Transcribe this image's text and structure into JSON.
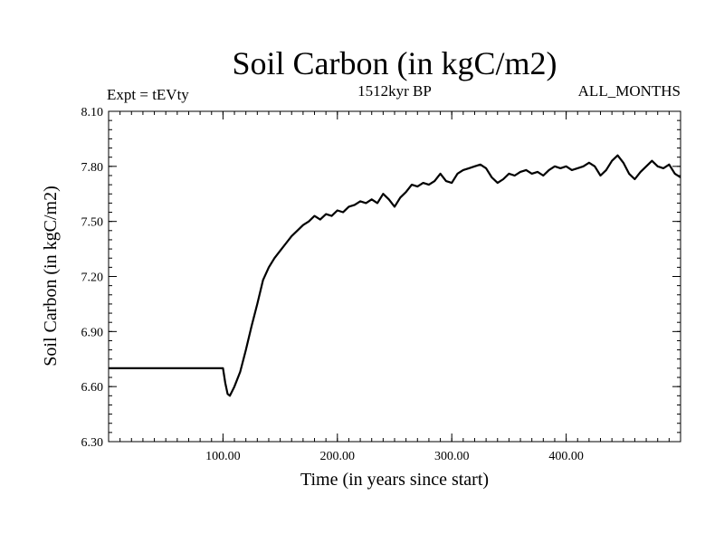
{
  "chart_data": {
    "type": "line",
    "title": "Soil Carbon (in kgC/m2)",
    "left_label": "Expt = tEVty",
    "center_label": "1512kyr BP",
    "right_label": "ALL_MONTHS",
    "xlabel": "Time (in years since start)",
    "ylabel": "Soil Carbon (in kgC/m2)",
    "xlim": [
      0,
      500
    ],
    "ylim": [
      6.3,
      8.1
    ],
    "x_ticks": [
      {
        "value": 100,
        "label": "100.00"
      },
      {
        "value": 200,
        "label": "200.00"
      },
      {
        "value": 300,
        "label": "300.00"
      },
      {
        "value": 400,
        "label": "400.00"
      }
    ],
    "y_ticks": [
      {
        "value": 6.3,
        "label": "6.30"
      },
      {
        "value": 6.6,
        "label": "6.60"
      },
      {
        "value": 6.9,
        "label": "6.90"
      },
      {
        "value": 7.2,
        "label": "7.20"
      },
      {
        "value": 7.5,
        "label": "7.50"
      },
      {
        "value": 7.8,
        "label": "7.80"
      },
      {
        "value": 8.1,
        "label": "8.10"
      }
    ],
    "series": [
      {
        "name": "Soil Carbon",
        "color": "#000000",
        "x": [
          0,
          100,
          102,
          104,
          106,
          110,
          115,
          120,
          125,
          130,
          135,
          140,
          145,
          150,
          155,
          160,
          165,
          170,
          175,
          180,
          185,
          190,
          195,
          200,
          205,
          210,
          215,
          220,
          225,
          230,
          235,
          240,
          245,
          250,
          255,
          260,
          265,
          270,
          275,
          280,
          285,
          290,
          295,
          300,
          305,
          310,
          315,
          320,
          325,
          330,
          335,
          340,
          345,
          350,
          355,
          360,
          365,
          370,
          375,
          380,
          385,
          390,
          395,
          400,
          405,
          410,
          415,
          420,
          425,
          430,
          435,
          440,
          445,
          450,
          455,
          460,
          465,
          470,
          475,
          480,
          485,
          490,
          495,
          500
        ],
        "y": [
          6.7,
          6.7,
          6.62,
          6.56,
          6.55,
          6.6,
          6.68,
          6.8,
          6.93,
          7.05,
          7.18,
          7.25,
          7.3,
          7.34,
          7.38,
          7.42,
          7.45,
          7.48,
          7.5,
          7.53,
          7.51,
          7.54,
          7.53,
          7.56,
          7.55,
          7.58,
          7.59,
          7.61,
          7.6,
          7.62,
          7.6,
          7.65,
          7.62,
          7.58,
          7.63,
          7.66,
          7.7,
          7.69,
          7.71,
          7.7,
          7.72,
          7.76,
          7.72,
          7.71,
          7.76,
          7.78,
          7.79,
          7.8,
          7.81,
          7.79,
          7.74,
          7.71,
          7.73,
          7.76,
          7.75,
          7.77,
          7.78,
          7.76,
          7.77,
          7.75,
          7.78,
          7.8,
          7.79,
          7.8,
          7.78,
          7.79,
          7.8,
          7.82,
          7.8,
          7.75,
          7.78,
          7.83,
          7.86,
          7.82,
          7.76,
          7.73,
          7.77,
          7.8,
          7.83,
          7.8,
          7.79,
          7.81,
          7.76,
          7.74
        ]
      }
    ]
  }
}
